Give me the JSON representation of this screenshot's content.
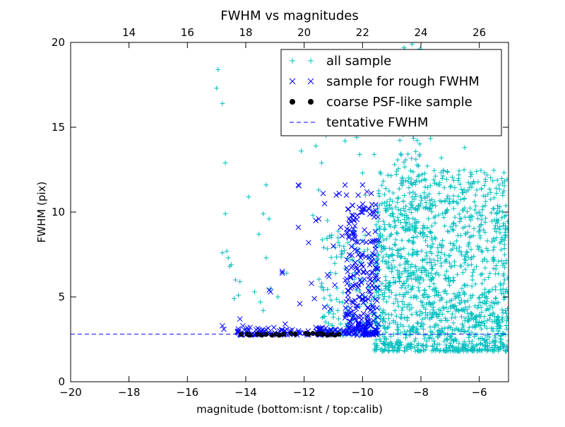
{
  "chart_data": {
    "type": "scatter",
    "title": "FWHM vs magnitudes",
    "xlabel": "magnitude (bottom:isnt / top:calib)",
    "ylabel": "FWHM (pix)",
    "xlim": [
      -20,
      -5
    ],
    "ylim": [
      0,
      20
    ],
    "x_ticks": [
      -20,
      -18,
      -16,
      -14,
      -12,
      -10,
      -8,
      -6
    ],
    "x_tick_labels": [
      "−20",
      "−18",
      "−16",
      "−14",
      "−12",
      "−10",
      "−8",
      "−6"
    ],
    "y_ticks": [
      0,
      5,
      10,
      15,
      20
    ],
    "y_tick_labels": [
      "0",
      "5",
      "10",
      "15",
      "20"
    ],
    "top_axis": {
      "offset": 32,
      "ticks": [
        14,
        16,
        18,
        20,
        22,
        24,
        26
      ],
      "tick_labels": [
        "14",
        "16",
        "18",
        "20",
        "22",
        "24",
        "26"
      ]
    },
    "grid": false,
    "legend_position": "top-right",
    "series": [
      {
        "name": "all sample",
        "marker": "plus",
        "color": "#00bfbf",
        "clusters": [
          {
            "x_range": [
              -9.6,
              -5.0
            ],
            "y_range": [
              1.8,
              12.5
            ],
            "count": 1350
          },
          {
            "x_range": [
              -8.8,
              -7.6
            ],
            "y_range": [
              6.0,
              19.8
            ],
            "count": 180
          },
          {
            "x_range": [
              -11.5,
              -9.2
            ],
            "y_range": [
              2.7,
              9.0
            ],
            "count": 140
          }
        ],
        "points": [
          [
            -15.0,
            17.3
          ],
          [
            -14.95,
            18.4
          ],
          [
            -14.8,
            16.4
          ],
          [
            -14.7,
            12.9
          ],
          [
            -14.7,
            9.9
          ],
          [
            -14.8,
            7.6
          ],
          [
            -14.65,
            7.7
          ],
          [
            -14.55,
            6.8
          ],
          [
            -14.6,
            7.3
          ],
          [
            -14.5,
            6.9
          ],
          [
            -14.35,
            6.0
          ],
          [
            -14.2,
            5.9
          ],
          [
            -14.25,
            5.1
          ],
          [
            -14.4,
            4.9
          ],
          [
            -13.9,
            10.9
          ],
          [
            -13.3,
            11.6
          ],
          [
            -13.4,
            9.9
          ],
          [
            -13.2,
            9.6
          ],
          [
            -13.55,
            8.7
          ],
          [
            -13.3,
            7.3
          ],
          [
            -13.7,
            5.3
          ],
          [
            -13.5,
            4.7
          ],
          [
            -13.4,
            4.2
          ],
          [
            -13.15,
            5.5
          ],
          [
            -12.9,
            5.0
          ],
          [
            -12.6,
            6.4
          ],
          [
            -12.1,
            13.6
          ],
          [
            -11.6,
            13.9
          ],
          [
            -11.4,
            12.9
          ],
          [
            -11.25,
            14.5
          ],
          [
            -11.5,
            11.3
          ],
          [
            -11.7,
            9.8
          ],
          [
            -11.2,
            9.5
          ],
          [
            -11.4,
            5.8
          ],
          [
            -11.2,
            4.5
          ],
          [
            -11.0,
            3.8
          ],
          [
            -10.85,
            4.2
          ],
          [
            -10.6,
            14.2
          ],
          [
            -10.2,
            14.4
          ],
          [
            -10.1,
            13.4
          ],
          [
            -10.0,
            12.3
          ],
          [
            -9.9,
            11.0
          ],
          [
            -10.5,
            8.2
          ],
          [
            -9.7,
            19.4
          ],
          [
            -9.5,
            16.3
          ],
          [
            -9.0,
            17.5
          ],
          [
            -9.2,
            14.6
          ],
          [
            -9.6,
            13.4
          ],
          [
            -8.3,
            19.9
          ],
          [
            -8.0,
            17.2
          ],
          [
            -7.7,
            15.7
          ],
          [
            -7.5,
            15.0
          ],
          [
            -7.3,
            13.2
          ],
          [
            -7.1,
            12.4
          ],
          [
            -6.6,
            14.9
          ],
          [
            -6.5,
            13.8
          ],
          [
            -6.3,
            12.1
          ],
          [
            -6.45,
            11.2
          ],
          [
            -6.2,
            11.8
          ],
          [
            -6.8,
            9.2
          ],
          [
            -6.0,
            10.0
          ],
          [
            -5.8,
            9.4
          ],
          [
            -7.4,
            11.6
          ],
          [
            -8.5,
            19.2
          ],
          [
            -8.9,
            12.8
          ]
        ]
      },
      {
        "name": "sample for rough FWHM",
        "marker": "x",
        "color": "#0000ff",
        "clusters": [
          {
            "x_range": [
              -10.6,
              -9.45
            ],
            "y_range": [
              2.8,
              10.5
            ],
            "count": 240
          },
          {
            "x_range": [
              -14.3,
              -9.5
            ],
            "y_range": [
              2.75,
              3.2
            ],
            "count": 130
          }
        ],
        "points": [
          [
            -14.8,
            3.3
          ],
          [
            -14.75,
            3.1
          ],
          [
            -14.2,
            3.7
          ],
          [
            -14.1,
            3.3
          ],
          [
            -13.85,
            3.2
          ],
          [
            -13.35,
            3.0
          ],
          [
            -12.75,
            6.4
          ],
          [
            -12.75,
            6.5
          ],
          [
            -12.65,
            3.4
          ],
          [
            -12.6,
            3.1
          ],
          [
            -13.2,
            5.4
          ],
          [
            -13.15,
            5.3
          ],
          [
            -12.2,
            11.6
          ],
          [
            -12.18,
            11.55
          ],
          [
            -12.2,
            9.1
          ],
          [
            -11.85,
            8.2
          ],
          [
            -12.15,
            4.6
          ],
          [
            -11.75,
            5.8
          ],
          [
            -11.6,
            3.2
          ],
          [
            -11.5,
            3.1
          ],
          [
            -11.6,
            9.5
          ],
          [
            -11.5,
            9.6
          ],
          [
            -11.65,
            4.9
          ],
          [
            -11.35,
            11.1
          ],
          [
            -11.3,
            10.5
          ],
          [
            -11.2,
            6.3
          ],
          [
            -11.15,
            6.2
          ],
          [
            -11.3,
            4.4
          ],
          [
            -11.1,
            4.3
          ],
          [
            -11.0,
            8.0
          ],
          [
            -10.95,
            5.7
          ],
          [
            -10.8,
            11.1
          ],
          [
            -10.9,
            11.0
          ],
          [
            -10.75,
            9.1
          ],
          [
            -10.7,
            8.6
          ],
          [
            -10.6,
            11.6
          ],
          [
            -10.55,
            11.0
          ],
          [
            -10.35,
            10.4
          ],
          [
            -10.15,
            11.0
          ],
          [
            -10.0,
            11.6
          ],
          [
            -9.85,
            11.2
          ],
          [
            -9.7,
            11.1
          ]
        ]
      },
      {
        "name": "coarse PSF-like sample",
        "marker": "circle",
        "color": "#000000",
        "points": [
          [
            -14.15,
            2.8
          ],
          [
            -13.95,
            2.8
          ],
          [
            -13.85,
            2.75
          ],
          [
            -13.6,
            2.8
          ],
          [
            -13.45,
            2.75
          ],
          [
            -13.3,
            2.8
          ],
          [
            -13.1,
            2.75
          ],
          [
            -12.95,
            2.8
          ],
          [
            -12.85,
            2.75
          ],
          [
            -12.7,
            2.8
          ],
          [
            -12.45,
            2.85
          ],
          [
            -12.3,
            2.8
          ],
          [
            -11.95,
            2.85
          ],
          [
            -11.85,
            2.8
          ],
          [
            -11.7,
            2.85
          ],
          [
            -11.55,
            2.8
          ],
          [
            -11.45,
            2.85
          ],
          [
            -11.35,
            2.8
          ],
          [
            -11.2,
            2.75
          ],
          [
            -11.05,
            2.8
          ],
          [
            -10.95,
            2.75
          ],
          [
            -10.8,
            2.8
          ]
        ]
      },
      {
        "name": "tentative FWHM",
        "marker": "dashed-line",
        "color": "#0000ff",
        "y_value": 2.8
      }
    ]
  }
}
